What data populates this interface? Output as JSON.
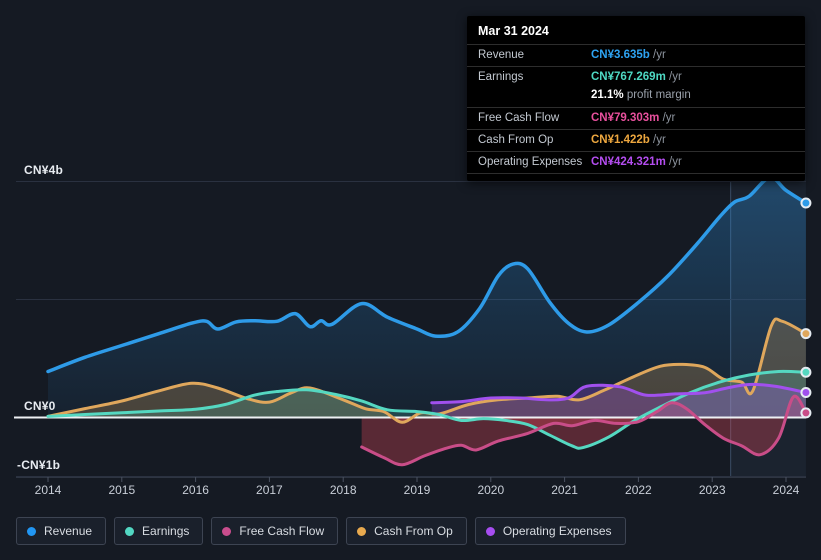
{
  "tooltip": {
    "date": "Mar 31 2024",
    "rows": [
      {
        "key": "revenue",
        "label": "Revenue",
        "value": "CN¥3.635b",
        "suffix": "/yr",
        "color": "#2ea3f2"
      },
      {
        "key": "earnings",
        "label": "Earnings",
        "value": "CN¥767.269m",
        "suffix": "/yr",
        "color": "#4ed8c3",
        "sub": {
          "value": "21.1%",
          "text": "profit margin"
        }
      },
      {
        "key": "free-cash-flow",
        "label": "Free Cash Flow",
        "value": "CN¥79.303m",
        "suffix": "/yr",
        "color": "#e8509d"
      },
      {
        "key": "cash-from-op",
        "label": "Cash From Op",
        "value": "CN¥1.422b",
        "suffix": "/yr",
        "color": "#eda73f"
      },
      {
        "key": "operating-expenses",
        "label": "Operating Expenses",
        "value": "CN¥424.321m",
        "suffix": "/yr",
        "color": "#b44df0"
      }
    ]
  },
  "legend": {
    "items": [
      {
        "key": "revenue",
        "label": "Revenue",
        "color": "#2196f3"
      },
      {
        "key": "earnings",
        "label": "Earnings",
        "color": "#52d7c2"
      },
      {
        "key": "free-cash-flow",
        "label": "Free Cash Flow",
        "color": "#c94d8d"
      },
      {
        "key": "cash-from-op",
        "label": "Cash From Op",
        "color": "#e8a94e"
      },
      {
        "key": "operating-expenses",
        "label": "Operating Expenses",
        "color": "#a64df0"
      }
    ]
  },
  "chart_data": {
    "type": "area",
    "title": "Earnings and revenue history (CN¥, billions)",
    "x_ticks": [
      2014,
      2015,
      2016,
      2017,
      2018,
      2019,
      2020,
      2021,
      2022,
      2023,
      2024
    ],
    "y_axis": {
      "labels": [
        {
          "text": "CN¥4b",
          "value": 4
        },
        {
          "text": "CN¥0",
          "value": 0
        },
        {
          "text": "-CN¥1b",
          "value": -1
        }
      ],
      "unlabeled_gridlines": [
        2
      ],
      "ylim": [
        -1.2,
        4.3
      ]
    },
    "highlight_band": {
      "from": 2023.25,
      "to": 2024.27
    },
    "series": [
      {
        "key": "revenue",
        "name": "Revenue",
        "color": "#2e9be8",
        "width": 3.5,
        "fill": "rgba(46,151,232,0.30)",
        "gradient": true,
        "points": [
          [
            2014,
            0.78
          ],
          [
            2014.5,
            1.02
          ],
          [
            2015,
            1.22
          ],
          [
            2015.5,
            1.42
          ],
          [
            2015.95,
            1.6
          ],
          [
            2016.15,
            1.63
          ],
          [
            2016.3,
            1.5
          ],
          [
            2016.55,
            1.62
          ],
          [
            2016.8,
            1.64
          ],
          [
            2017.1,
            1.63
          ],
          [
            2017.35,
            1.76
          ],
          [
            2017.55,
            1.54
          ],
          [
            2017.7,
            1.64
          ],
          [
            2017.85,
            1.58
          ],
          [
            2018.25,
            1.93
          ],
          [
            2018.6,
            1.7
          ],
          [
            2019,
            1.5
          ],
          [
            2019.25,
            1.38
          ],
          [
            2019.55,
            1.45
          ],
          [
            2019.85,
            1.85
          ],
          [
            2020.1,
            2.4
          ],
          [
            2020.3,
            2.6
          ],
          [
            2020.5,
            2.52
          ],
          [
            2020.8,
            1.95
          ],
          [
            2021.05,
            1.6
          ],
          [
            2021.3,
            1.45
          ],
          [
            2021.6,
            1.57
          ],
          [
            2022,
            1.95
          ],
          [
            2022.4,
            2.4
          ],
          [
            2022.8,
            2.95
          ],
          [
            2023.1,
            3.4
          ],
          [
            2023.3,
            3.65
          ],
          [
            2023.5,
            3.75
          ],
          [
            2023.78,
            4.07
          ],
          [
            2024,
            3.85
          ],
          [
            2024.27,
            3.635
          ]
        ]
      },
      {
        "key": "cash-from-op",
        "name": "Cash From Op",
        "color": "#dfa75c",
        "width": 3,
        "fill": "rgba(223,167,92,0.25)",
        "points": [
          [
            2014,
            0.02
          ],
          [
            2014.5,
            0.15
          ],
          [
            2015,
            0.28
          ],
          [
            2015.5,
            0.45
          ],
          [
            2015.95,
            0.58
          ],
          [
            2016.3,
            0.5
          ],
          [
            2016.7,
            0.32
          ],
          [
            2017,
            0.26
          ],
          [
            2017.3,
            0.42
          ],
          [
            2017.55,
            0.5
          ],
          [
            2018,
            0.3
          ],
          [
            2018.3,
            0.15
          ],
          [
            2018.55,
            0.1
          ],
          [
            2018.8,
            -0.08
          ],
          [
            2019.05,
            0.08
          ],
          [
            2019.3,
            0.06
          ],
          [
            2019.7,
            0.22
          ],
          [
            2020.1,
            0.3
          ],
          [
            2020.5,
            0.33
          ],
          [
            2020.9,
            0.36
          ],
          [
            2021.2,
            0.3
          ],
          [
            2021.55,
            0.47
          ],
          [
            2021.95,
            0.7
          ],
          [
            2022.3,
            0.87
          ],
          [
            2022.6,
            0.9
          ],
          [
            2022.9,
            0.85
          ],
          [
            2023.15,
            0.65
          ],
          [
            2023.4,
            0.6
          ],
          [
            2023.55,
            0.45
          ],
          [
            2023.8,
            1.55
          ],
          [
            2023.95,
            1.63
          ],
          [
            2024.27,
            1.422
          ]
        ]
      },
      {
        "key": "earnings",
        "name": "Earnings",
        "color": "#55d8c1",
        "width": 3,
        "fill": "rgba(85,216,193,0.20)",
        "points": [
          [
            2014,
            0.02
          ],
          [
            2014.5,
            0.05
          ],
          [
            2015,
            0.08
          ],
          [
            2015.5,
            0.11
          ],
          [
            2016,
            0.14
          ],
          [
            2016.4,
            0.22
          ],
          [
            2016.8,
            0.38
          ],
          [
            2017.1,
            0.44
          ],
          [
            2017.5,
            0.47
          ],
          [
            2017.9,
            0.39
          ],
          [
            2018.25,
            0.28
          ],
          [
            2018.6,
            0.13
          ],
          [
            2019,
            0.1
          ],
          [
            2019.3,
            0.05
          ],
          [
            2019.6,
            -0.05
          ],
          [
            2019.9,
            -0.02
          ],
          [
            2020.2,
            -0.05
          ],
          [
            2020.5,
            -0.12
          ],
          [
            2020.8,
            -0.3
          ],
          [
            2021.1,
            -0.48
          ],
          [
            2021.25,
            -0.51
          ],
          [
            2021.6,
            -0.33
          ],
          [
            2021.95,
            -0.05
          ],
          [
            2022.3,
            0.18
          ],
          [
            2022.7,
            0.42
          ],
          [
            2023.1,
            0.6
          ],
          [
            2023.5,
            0.72
          ],
          [
            2023.9,
            0.78
          ],
          [
            2024.27,
            0.767
          ]
        ]
      },
      {
        "key": "operating-expenses",
        "name": "Operating Expenses",
        "color": "#a150ee",
        "width": 3,
        "fill": "rgba(161,80,238,0.28)",
        "points": [
          [
            2019.2,
            0.25
          ],
          [
            2019.6,
            0.27
          ],
          [
            2020,
            0.33
          ],
          [
            2020.4,
            0.33
          ],
          [
            2020.75,
            0.3
          ],
          [
            2021.05,
            0.33
          ],
          [
            2021.3,
            0.53
          ],
          [
            2021.75,
            0.52
          ],
          [
            2022.1,
            0.38
          ],
          [
            2022.5,
            0.4
          ],
          [
            2022.9,
            0.42
          ],
          [
            2023.2,
            0.5
          ],
          [
            2023.5,
            0.56
          ],
          [
            2023.85,
            0.53
          ],
          [
            2024.27,
            0.424
          ]
        ]
      },
      {
        "key": "free-cash-flow",
        "name": "Free Cash Flow",
        "color": "#c94d88",
        "width": 3,
        "fill": "rgba(201,77,136,0.30)",
        "points": [
          [
            2018.25,
            -0.5
          ],
          [
            2018.55,
            -0.68
          ],
          [
            2018.8,
            -0.8
          ],
          [
            2019.1,
            -0.65
          ],
          [
            2019.4,
            -0.52
          ],
          [
            2019.6,
            -0.47
          ],
          [
            2019.8,
            -0.55
          ],
          [
            2020.1,
            -0.4
          ],
          [
            2020.5,
            -0.27
          ],
          [
            2020.85,
            -0.1
          ],
          [
            2021.1,
            -0.14
          ],
          [
            2021.4,
            -0.05
          ],
          [
            2021.7,
            -0.1
          ],
          [
            2022,
            -0.07
          ],
          [
            2022.25,
            0.1
          ],
          [
            2022.45,
            0.25
          ],
          [
            2022.65,
            0.15
          ],
          [
            2022.9,
            -0.12
          ],
          [
            2023.15,
            -0.35
          ],
          [
            2023.4,
            -0.48
          ],
          [
            2023.65,
            -0.63
          ],
          [
            2023.9,
            -0.35
          ],
          [
            2024.1,
            0.35
          ],
          [
            2024.27,
            0.079
          ]
        ]
      }
    ],
    "negative_fill": "rgba(229,72,90,0.33)",
    "legend_position": "bottom"
  }
}
